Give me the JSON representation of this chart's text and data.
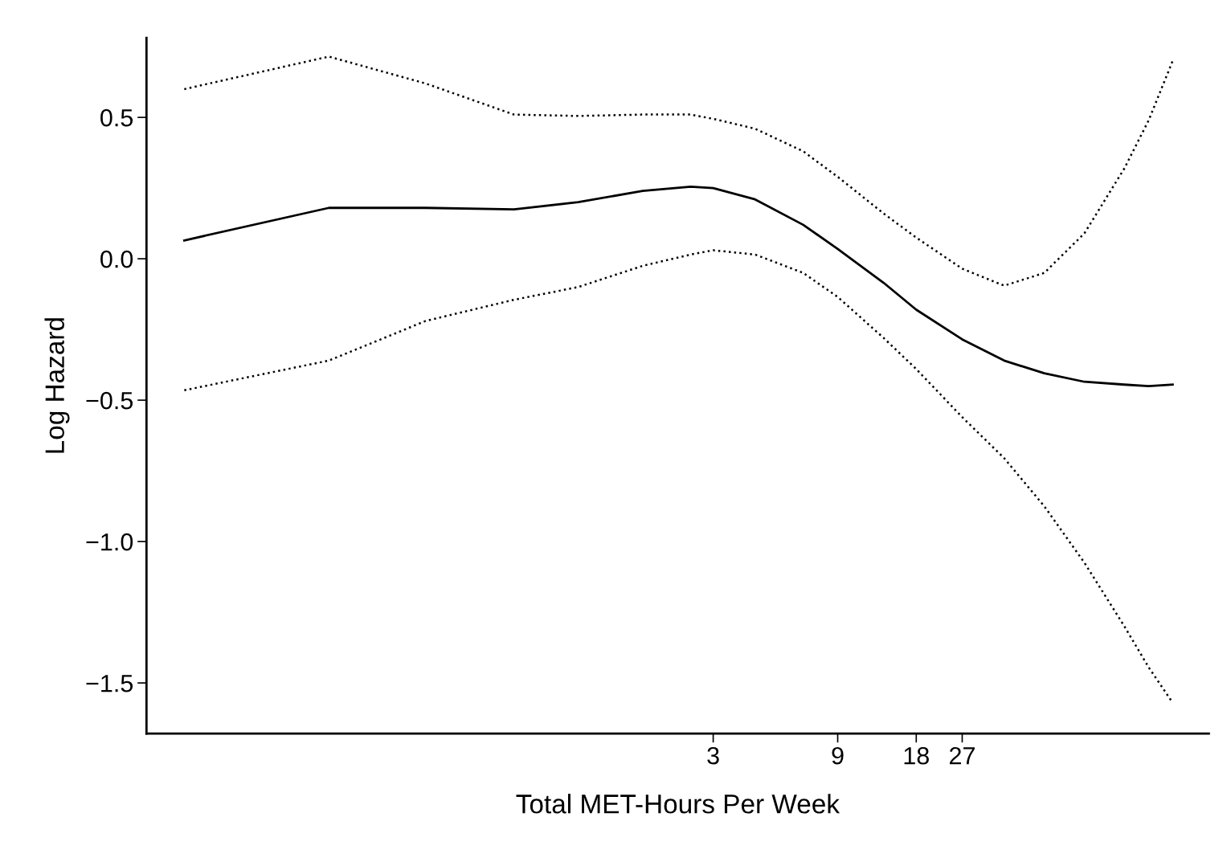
{
  "chart_data": {
    "type": "line",
    "xlabel": "Total MET-Hours Per Week",
    "ylabel": "Log Hazard",
    "log": "x",
    "x": [
      0.0282,
      0.101,
      0.237,
      0.517,
      0.911,
      1.61,
      2.46,
      3,
      4.34,
      6.64,
      9,
      13.5,
      18,
      27,
      39.1,
      55.7,
      79.4,
      113,
      140,
      173
    ],
    "series": [
      {
        "color": "#000000",
        "line_style": "solid",
        "values": [
          0.065,
          0.18,
          0.18,
          0.175,
          0.2,
          0.24,
          0.255,
          0.25,
          0.21,
          0.12,
          0.035,
          -0.085,
          -0.18,
          -0.285,
          -0.36,
          -0.405,
          -0.435,
          -0.445,
          -0.45,
          -0.445
        ]
      },
      {
        "color": "#000000",
        "line_style": "dotted",
        "values": [
          0.6,
          0.715,
          0.62,
          0.51,
          0.505,
          0.51,
          0.51,
          0.495,
          0.46,
          0.38,
          0.29,
          0.16,
          0.075,
          -0.035,
          -0.095,
          -0.05,
          0.09,
          0.32,
          0.49,
          0.7
        ]
      },
      {
        "color": "#000000",
        "line_style": "dotted",
        "values": [
          -0.465,
          -0.36,
          -0.22,
          -0.145,
          -0.1,
          -0.025,
          0.015,
          0.03,
          0.015,
          -0.05,
          -0.135,
          -0.28,
          -0.39,
          -0.56,
          -0.705,
          -0.875,
          -1.075,
          -1.3,
          -1.445,
          -1.57
        ]
      }
    ],
    "xlim": [
      0.0202,
      238
    ],
    "xticks": [
      3,
      9,
      18,
      27
    ],
    "ylim": [
      -1.679,
      0.781
    ],
    "yticks": [
      {
        "value": 0.5,
        "label": "0.5"
      },
      {
        "value": 0.0,
        "label": "0.0"
      },
      {
        "value": -0.5,
        "label": "−0.5"
      },
      {
        "value": -1.0,
        "label": "−1.0"
      },
      {
        "value": -1.5,
        "label": "−1.5"
      }
    ],
    "grid": false,
    "legend": false,
    "marker": "none"
  }
}
